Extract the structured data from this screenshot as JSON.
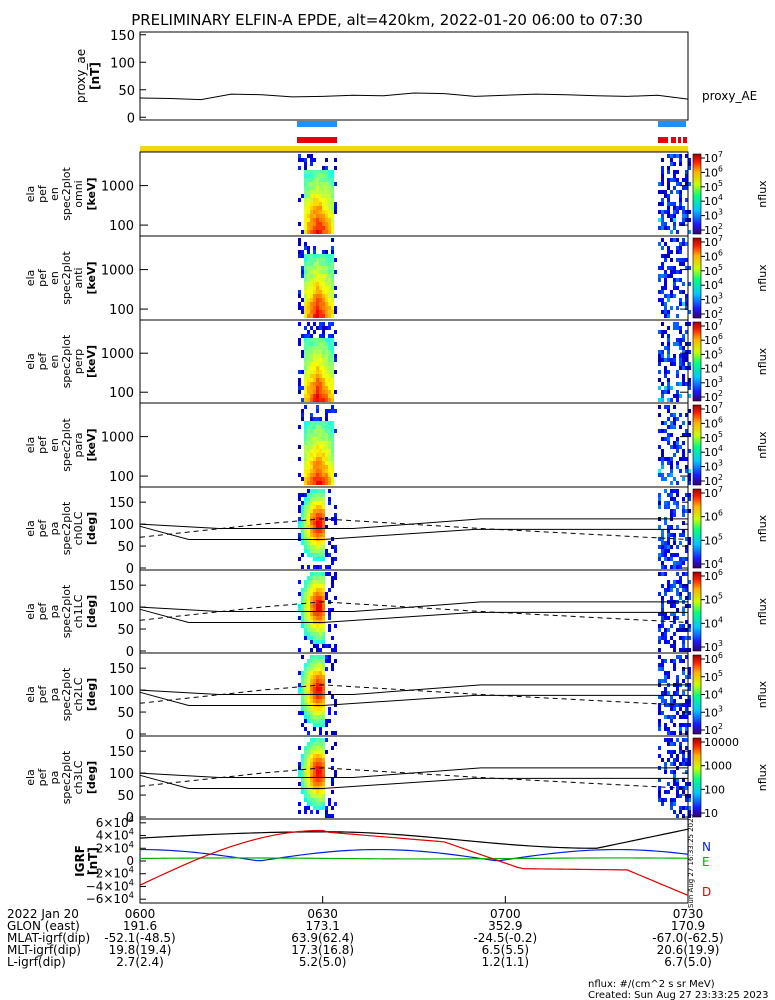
{
  "title": "PRELIMINARY ELFIN-A EPDE, alt=420km, 2022-01-20 06:00 to 07:30",
  "colors": {
    "blue_bar": "#1e90ff",
    "red_bar": "#e8000b",
    "yellow_bar": "#f5d60a",
    "line": "#000000"
  },
  "chart_data": {
    "type": "heatmap",
    "title": "PRELIMINARY ELFIN-A EPDE, alt=420km, 2022-01-20 06:00 to 07:30",
    "time_ticks": [
      "0600",
      "0630",
      "0700",
      "0730"
    ],
    "panels": [
      {
        "id": "proxy_ae",
        "ylabel_lines": [
          "proxy_ae",
          "[nT]"
        ],
        "yticks": [
          "150",
          "100",
          "50",
          "0"
        ],
        "legend": "proxy_AE",
        "type": "line",
        "series": {
          "x_min": [
            0,
            5,
            10,
            15,
            20,
            25,
            30,
            35,
            40,
            45,
            50,
            55,
            60,
            65,
            70,
            75,
            80,
            85,
            90
          ],
          "y": [
            35,
            34,
            32,
            42,
            41,
            37,
            38,
            40,
            39,
            44,
            43,
            38,
            40,
            42,
            41,
            39,
            38,
            40,
            33
          ]
        }
      },
      {
        "id": "en_omni",
        "ylabel_lines": [
          "ela",
          "pef",
          "en",
          "spec2plot",
          "omni",
          "[keV]"
        ],
        "yticks": [
          "1000",
          "100"
        ],
        "cbar_ticks": [
          "10^7",
          "10^6",
          "10^5",
          "10^4",
          "10^3",
          "10^2"
        ],
        "cbar_label": "nflux"
      },
      {
        "id": "en_anti",
        "ylabel_lines": [
          "ela",
          "pef",
          "en",
          "spec2plot",
          "anti",
          "[keV]"
        ],
        "yticks": [
          "1000",
          "100"
        ],
        "cbar_ticks": [
          "10^7",
          "10^6",
          "10^5",
          "10^4",
          "10^3",
          "10^2"
        ],
        "cbar_label": "nflux"
      },
      {
        "id": "en_perp",
        "ylabel_lines": [
          "ela",
          "pef",
          "en",
          "spec2plot",
          "perp",
          "[keV]"
        ],
        "yticks": [
          "1000",
          "100"
        ],
        "cbar_ticks": [
          "10^7",
          "10^6",
          "10^5",
          "10^4",
          "10^3",
          "10^2"
        ],
        "cbar_label": "nflux"
      },
      {
        "id": "en_para",
        "ylabel_lines": [
          "ela",
          "pef",
          "en",
          "spec2plot",
          "para",
          "[keV]"
        ],
        "yticks": [
          "1000",
          "100"
        ],
        "cbar_ticks": [
          "10^7",
          "10^6",
          "10^5",
          "10^4",
          "10^3",
          "10^2"
        ],
        "cbar_label": "nflux"
      },
      {
        "id": "ch0LC",
        "ylabel_lines": [
          "ela",
          "pef",
          "pa",
          "spec2plot",
          "ch0LC",
          "[deg]"
        ],
        "yticks": [
          "150",
          "100",
          "50",
          "0"
        ],
        "cbar_ticks": [
          "10^7",
          "10^6",
          "10^5",
          "10^4"
        ],
        "cbar_label": "nflux"
      },
      {
        "id": "ch1LC",
        "ylabel_lines": [
          "ela",
          "pef",
          "pa",
          "spec2plot",
          "ch1LC",
          "[deg]"
        ],
        "yticks": [
          "150",
          "100",
          "50",
          "0"
        ],
        "cbar_ticks": [
          "10^6",
          "10^5",
          "10^4",
          "10^3"
        ],
        "cbar_label": "nflux"
      },
      {
        "id": "ch2LC",
        "ylabel_lines": [
          "ela",
          "pef",
          "pa",
          "spec2plot",
          "ch2LC",
          "[deg]"
        ],
        "yticks": [
          "150",
          "100",
          "50",
          "0"
        ],
        "cbar_ticks": [
          "10^6",
          "10^5",
          "10^4",
          "10^3",
          "10^2"
        ],
        "cbar_label": "nflux"
      },
      {
        "id": "ch3LC",
        "ylabel_lines": [
          "ela",
          "pef",
          "pa",
          "spec2plot",
          "ch3LC",
          "[deg]"
        ],
        "yticks": [
          "150",
          "100",
          "50",
          "0"
        ],
        "cbar_ticks": [
          "10000",
          "1000",
          "100",
          "10"
        ],
        "cbar_label": "nflux"
      },
      {
        "id": "igrf",
        "ylabel_lines": [
          "IGRF",
          "[nT]"
        ],
        "yticks": [
          "6×10^4",
          "4×10^4",
          "2×10^4",
          "0",
          "−2×10^4",
          "−4×10^4",
          "−6×10^4"
        ],
        "legend": [
          "N",
          "E",
          "D"
        ]
      }
    ],
    "time_axis": {
      "labels": [
        "2022 Jan 20",
        "GLON (east)",
        "MLAT-igrf(dip)",
        "MLT-igrf(dip)",
        "L-igrf(dip)"
      ],
      "columns": [
        [
          "0600",
          "191.6",
          "-52.1(-48.5)",
          "19.8(19.4)",
          "2.7(2.4)"
        ],
        [
          "0630",
          "173.1",
          "63.9(62.4)",
          "17.3(16.8)",
          "5.2(5.0)"
        ],
        [
          "0700",
          "352.9",
          "-24.5(-0.2)",
          "6.5(5.5)",
          "1.2(1.1)"
        ],
        [
          "0730",
          "170.9",
          "-67.0(-62.5)",
          "20.6(19.9)",
          "6.7(5.0)"
        ]
      ]
    }
  },
  "footer": {
    "units": "nflux: #/(cm^2 s sr MeV)",
    "created": "Created: Sun Aug 27 23:33:25 2023",
    "side_stamp": "Sun Aug 27 16:33:25 2023"
  }
}
